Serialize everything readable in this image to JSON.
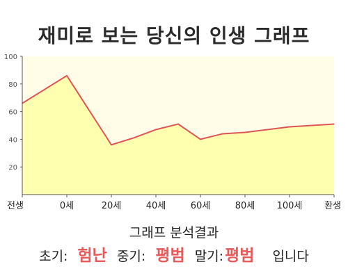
{
  "title": "재미로 보는 당신의 인생 그래프",
  "colors": {
    "line": "#dd5555",
    "area": "#ffffb0",
    "plot_bg": "#fffde8",
    "highlight": "#e85a5a"
  },
  "chart_data": {
    "type": "area",
    "categories": [
      "전생",
      "0세",
      "20세",
      "40세",
      "60세",
      "80세",
      "100세",
      "환생"
    ],
    "x": [
      -20,
      0,
      20,
      40,
      60,
      80,
      100,
      120
    ],
    "series": [
      {
        "x": [
          -20,
          0,
          20,
          30,
          40,
          50,
          60,
          70,
          80,
          90,
          100,
          110,
          120
        ],
        "values": [
          66,
          86,
          36,
          41,
          47,
          51,
          40,
          44,
          45,
          47,
          49,
          50,
          51
        ]
      }
    ],
    "xlim": [
      -20,
      120
    ],
    "ylim": [
      0,
      100
    ],
    "yticks": [
      20,
      40,
      60,
      80,
      100
    ],
    "grid": false
  },
  "analysis": {
    "title": "그래프 분석결과",
    "early_label": "초기:",
    "early_value": "험난",
    "middle_label": "중기:",
    "middle_value": "평범",
    "late_label": "말기:",
    "late_value": "평범",
    "suffix": "입니다"
  }
}
